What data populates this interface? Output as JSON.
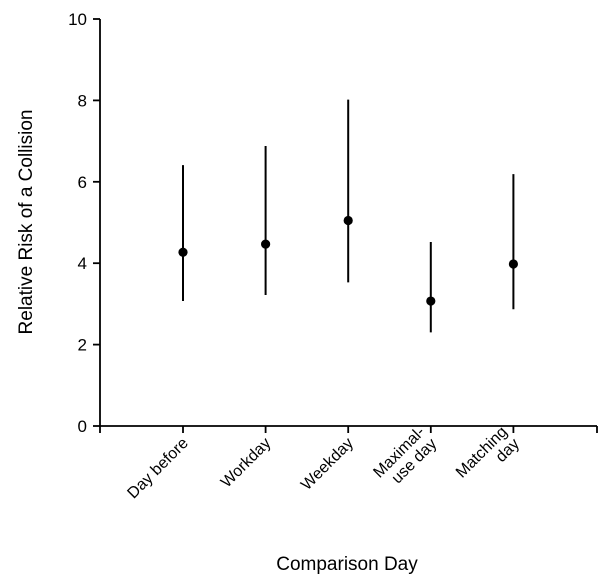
{
  "chart_data": {
    "type": "scatter",
    "title": "",
    "xlabel": "Comparison Day",
    "ylabel": "Relative Risk of a Collision",
    "ylim": [
      0,
      10
    ],
    "yticks": [
      "0",
      "2",
      "4",
      "6",
      "8",
      "10"
    ],
    "categories": [
      [
        "Day before"
      ],
      [
        "Workday"
      ],
      [
        "Weekday"
      ],
      [
        "Maximal-",
        "use day"
      ],
      [
        "Matching",
        "day"
      ]
    ],
    "values": [
      4.27,
      4.47,
      5.05,
      3.07,
      3.98
    ],
    "lower": [
      3.07,
      3.22,
      3.53,
      2.3,
      2.87
    ],
    "upper": [
      6.41,
      6.88,
      8.02,
      4.52,
      6.19
    ],
    "grid": false,
    "legend": "none",
    "colors": {
      "marks": "#000000",
      "background": "#ffffff"
    }
  }
}
